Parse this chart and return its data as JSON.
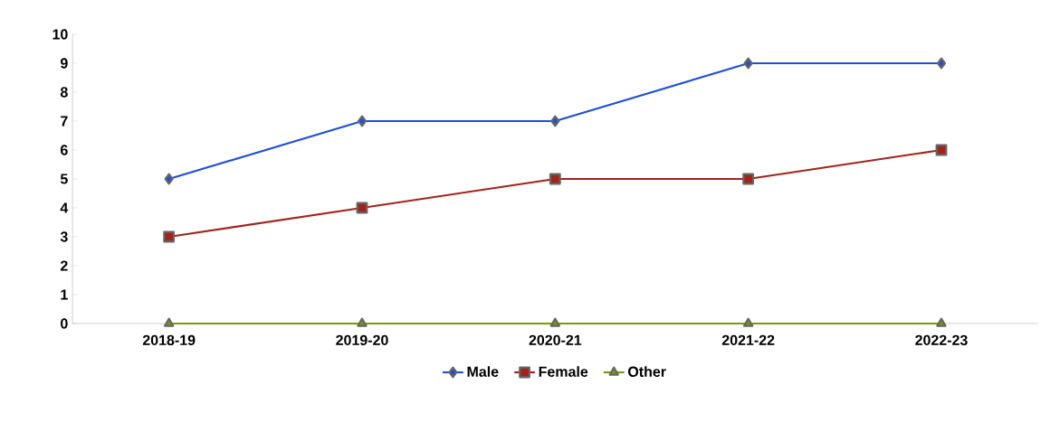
{
  "chart_data": {
    "type": "line",
    "categories": [
      "2018-19",
      "2019-20",
      "2020-21",
      "2021-22",
      "2022-23"
    ],
    "series": [
      {
        "name": "Male",
        "color": "#1f4fd8",
        "marker": "diamond",
        "values": [
          5,
          7,
          7,
          9,
          9
        ]
      },
      {
        "name": "Female",
        "color": "#a3231b",
        "marker": "square",
        "values": [
          3,
          4,
          5,
          5,
          6
        ]
      },
      {
        "name": "Other",
        "color": "#7a9a01",
        "marker": "triangle",
        "values": [
          0,
          0,
          0,
          0,
          0
        ]
      }
    ],
    "ylim": [
      0,
      10
    ],
    "yticks": [
      0,
      1,
      2,
      3,
      4,
      5,
      6,
      7,
      8,
      9,
      10
    ],
    "grid": false,
    "legend": "bottom",
    "line_style": "solid"
  }
}
